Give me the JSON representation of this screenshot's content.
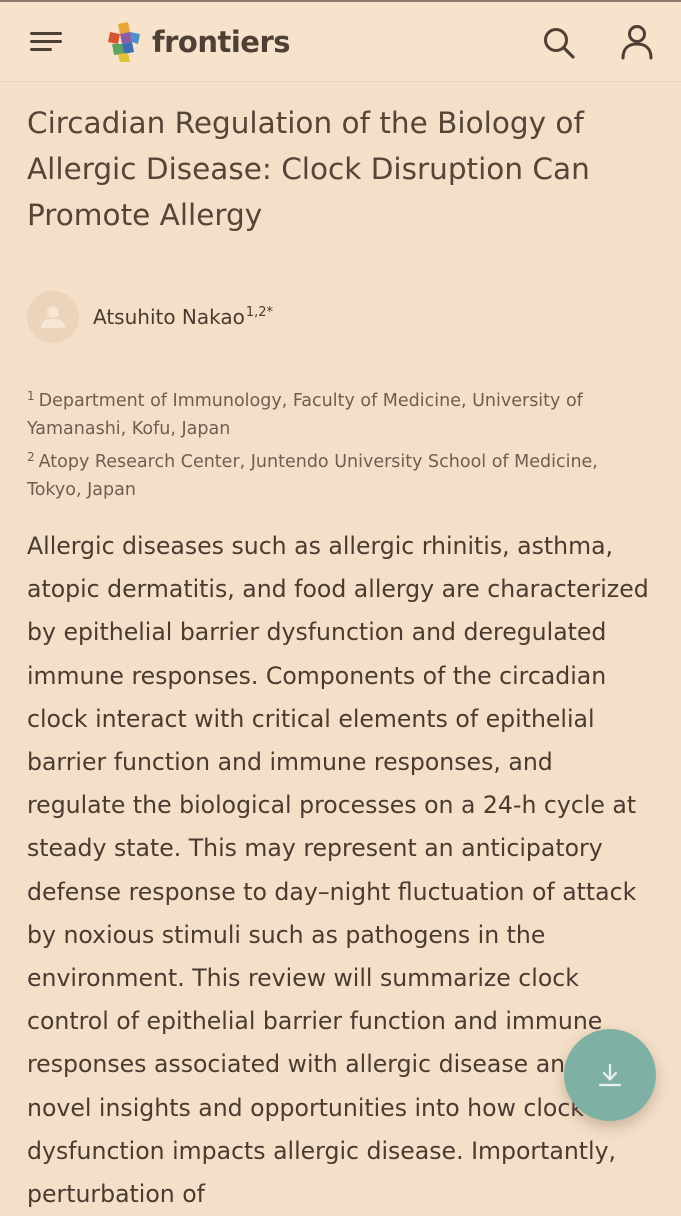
{
  "header": {
    "logo_text": "frontiers",
    "menu_icon": "hamburger-menu-icon",
    "search_icon": "search-icon",
    "account_icon": "user-account-icon"
  },
  "article": {
    "title": "Circadian Regulation of the Biology of Allergic Disease: Clock Disruption Can Promote Allergy",
    "author": {
      "name": "Atsuhito Nakao",
      "affiliation_marks": "1,2*"
    },
    "affiliations": [
      {
        "number": "1",
        "text": "Department of Immunology, Faculty of Medicine, University of Yamanashi, Kofu, Japan"
      },
      {
        "number": "2",
        "text": "Atopy Research Center, Juntendo University School of Medicine, Tokyo, Japan"
      }
    ],
    "abstract": "Allergic diseases such as allergic rhinitis, asthma, atopic dermatitis, and food allergy are characterized by epithelial barrier dysfunction and deregulated immune responses. Components of the circadian clock interact with critical elements of epithelial barrier function and immune responses, and regulate the biological processes on a 24-h cycle at steady state. This may represent an anticipatory defense response to day–night fluctuation of attack by noxious stimuli such as pathogens in the environment. This review will summarize clock control of epithelial barrier function and immune responses associated with allergic disease and offer novel insights and opportunities into how clock dysfunction impacts allergic disease. Importantly, perturbation of"
  },
  "download_button": {
    "icon": "download-icon"
  },
  "colors": {
    "page_background": "#f4dfc8",
    "header_background": "#f7e3cc",
    "text_primary": "#4a3b30",
    "fab_background": "#7fb0a4"
  }
}
